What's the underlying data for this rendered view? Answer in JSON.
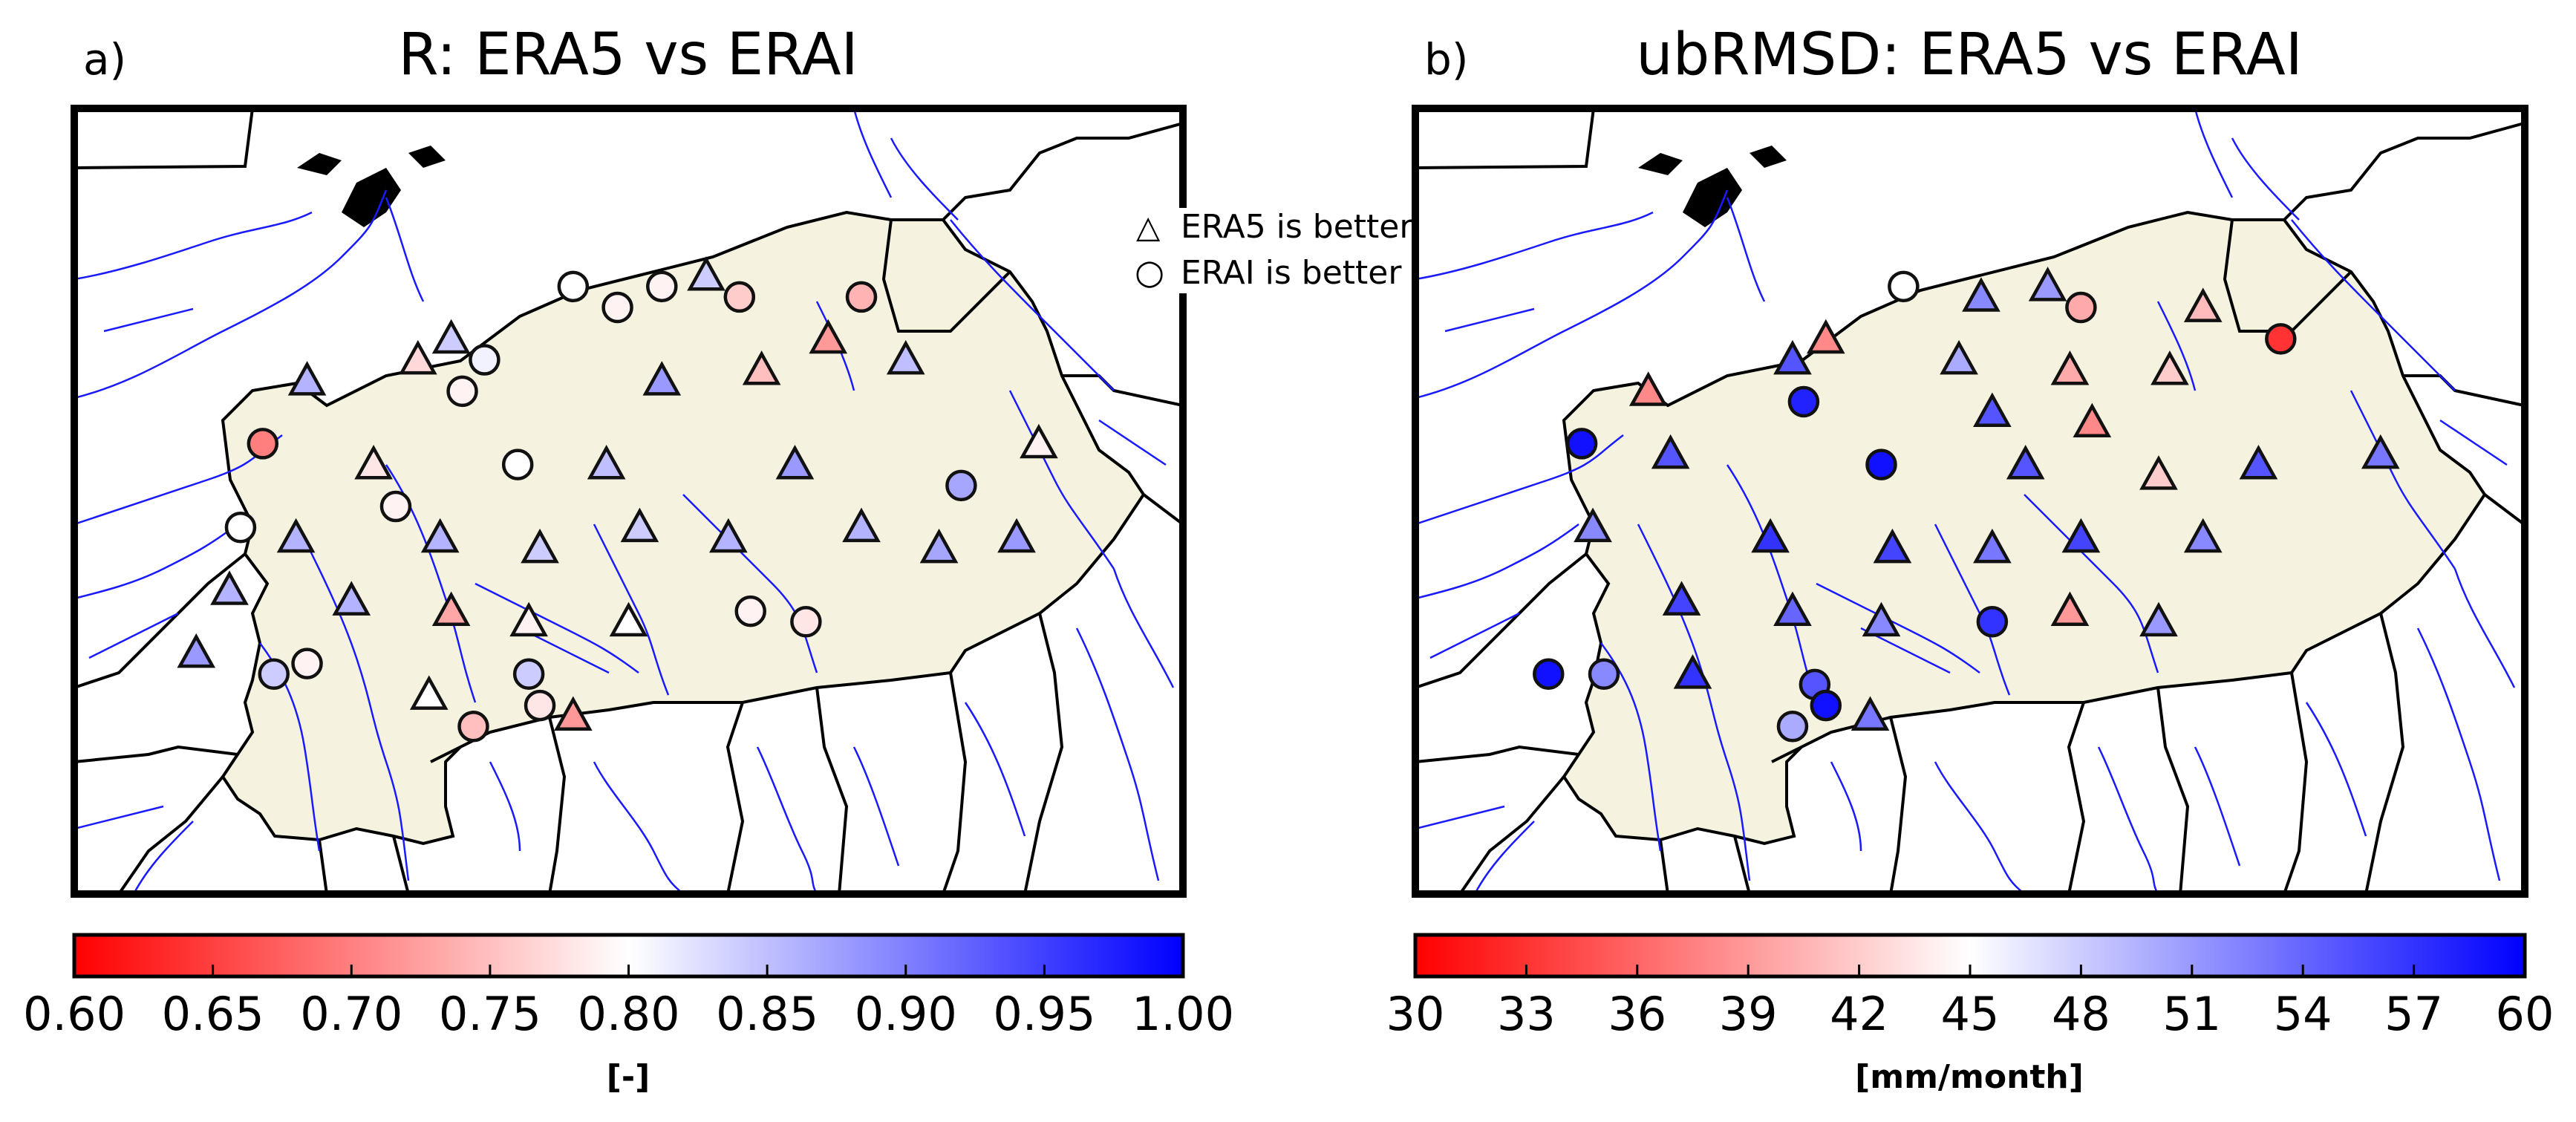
{
  "chart_data": [
    {
      "panel_label": "a)",
      "title": "R: ERA5 vs ERAI",
      "type": "scatter",
      "legend": {
        "placement": "top-right",
        "entries": [
          {
            "symbol": "△",
            "label": "ERA5 is better"
          },
          {
            "symbol": "○",
            "label": "ERAI is better"
          }
        ]
      },
      "colorbar": {
        "ticks": [
          "0.60",
          "0.65",
          "0.70",
          "0.75",
          "0.80",
          "0.85",
          "0.90",
          "0.95",
          "1.00"
        ],
        "range": [
          0.6,
          1.0
        ],
        "unit_label": "[-]",
        "colors": [
          "#ff0000",
          "#ffffff",
          "#0000ff"
        ]
      },
      "stations": [
        {
          "lon": -2.0,
          "lat": 14.3,
          "marker": "circle",
          "value": 0.8
        },
        {
          "lon": -1.6,
          "lat": 14.1,
          "marker": "circle",
          "value": 0.79
        },
        {
          "lon": -1.2,
          "lat": 14.3,
          "marker": "circle",
          "value": 0.79
        },
        {
          "lon": -0.8,
          "lat": 14.4,
          "marker": "triangle",
          "value": 0.84
        },
        {
          "lon": -0.5,
          "lat": 14.2,
          "marker": "circle",
          "value": 0.76
        },
        {
          "lon": 0.6,
          "lat": 14.2,
          "marker": "circle",
          "value": 0.74
        },
        {
          "lon": -3.1,
          "lat": 13.8,
          "marker": "triangle",
          "value": 0.84
        },
        {
          "lon": -2.8,
          "lat": 13.6,
          "marker": "circle",
          "value": 0.81
        },
        {
          "lon": -3.4,
          "lat": 13.6,
          "marker": "triangle",
          "value": 0.77
        },
        {
          "lon": 0.3,
          "lat": 13.8,
          "marker": "triangle",
          "value": 0.72
        },
        {
          "lon": 1.0,
          "lat": 13.6,
          "marker": "triangle",
          "value": 0.85
        },
        {
          "lon": -4.4,
          "lat": 13.4,
          "marker": "triangle",
          "value": 0.86
        },
        {
          "lon": -3.0,
          "lat": 13.3,
          "marker": "circle",
          "value": 0.79
        },
        {
          "lon": -1.2,
          "lat": 13.4,
          "marker": "triangle",
          "value": 0.88
        },
        {
          "lon": -0.3,
          "lat": 13.5,
          "marker": "triangle",
          "value": 0.75
        },
        {
          "lon": -4.8,
          "lat": 12.8,
          "marker": "circle",
          "value": 0.7
        },
        {
          "lon": -3.8,
          "lat": 12.6,
          "marker": "triangle",
          "value": 0.78
        },
        {
          "lon": -2.5,
          "lat": 12.6,
          "marker": "circle",
          "value": 0.8
        },
        {
          "lon": -1.7,
          "lat": 12.6,
          "marker": "triangle",
          "value": 0.85
        },
        {
          "lon": 0.0,
          "lat": 12.6,
          "marker": "triangle",
          "value": 0.88
        },
        {
          "lon": 1.5,
          "lat": 12.4,
          "marker": "circle",
          "value": 0.87
        },
        {
          "lon": 2.2,
          "lat": 12.8,
          "marker": "triangle",
          "value": 0.79
        },
        {
          "lon": -5.0,
          "lat": 12.0,
          "marker": "circle",
          "value": 0.8
        },
        {
          "lon": -4.5,
          "lat": 11.9,
          "marker": "triangle",
          "value": 0.86
        },
        {
          "lon": -3.6,
          "lat": 12.2,
          "marker": "circle",
          "value": 0.79
        },
        {
          "lon": -3.2,
          "lat": 11.9,
          "marker": "triangle",
          "value": 0.86
        },
        {
          "lon": -2.3,
          "lat": 11.8,
          "marker": "triangle",
          "value": 0.84
        },
        {
          "lon": -1.4,
          "lat": 12.0,
          "marker": "triangle",
          "value": 0.84
        },
        {
          "lon": -0.6,
          "lat": 11.9,
          "marker": "triangle",
          "value": 0.86
        },
        {
          "lon": 0.6,
          "lat": 12.0,
          "marker": "triangle",
          "value": 0.86
        },
        {
          "lon": 1.3,
          "lat": 11.8,
          "marker": "triangle",
          "value": 0.87
        },
        {
          "lon": 2.0,
          "lat": 11.9,
          "marker": "triangle",
          "value": 0.88
        },
        {
          "lon": -5.1,
          "lat": 11.4,
          "marker": "triangle",
          "value": 0.86
        },
        {
          "lon": -4.0,
          "lat": 11.3,
          "marker": "triangle",
          "value": 0.86
        },
        {
          "lon": -3.1,
          "lat": 11.2,
          "marker": "triangle",
          "value": 0.73
        },
        {
          "lon": -2.4,
          "lat": 11.1,
          "marker": "triangle",
          "value": 0.79
        },
        {
          "lon": -1.5,
          "lat": 11.1,
          "marker": "triangle",
          "value": 0.8
        },
        {
          "lon": -0.4,
          "lat": 11.2,
          "marker": "circle",
          "value": 0.79
        },
        {
          "lon": 0.1,
          "lat": 11.1,
          "marker": "circle",
          "value": 0.78
        },
        {
          "lon": -5.4,
          "lat": 10.8,
          "marker": "triangle",
          "value": 0.88
        },
        {
          "lon": -4.7,
          "lat": 10.6,
          "marker": "circle",
          "value": 0.84
        },
        {
          "lon": -4.4,
          "lat": 10.7,
          "marker": "circle",
          "value": 0.79
        },
        {
          "lon": -3.3,
          "lat": 10.4,
          "marker": "triangle",
          "value": 0.8
        },
        {
          "lon": -2.4,
          "lat": 10.6,
          "marker": "circle",
          "value": 0.84
        },
        {
          "lon": -2.3,
          "lat": 10.3,
          "marker": "circle",
          "value": 0.78
        },
        {
          "lon": -2.9,
          "lat": 10.1,
          "marker": "circle",
          "value": 0.75
        },
        {
          "lon": -2.0,
          "lat": 10.2,
          "marker": "triangle",
          "value": 0.72
        }
      ]
    },
    {
      "panel_label": "b)",
      "title": "ubRMSD: ERA5 vs ERAI",
      "type": "scatter",
      "colorbar": {
        "ticks": [
          "30",
          "33",
          "36",
          "39",
          "42",
          "45",
          "48",
          "51",
          "54",
          "57",
          "60"
        ],
        "range": [
          30,
          60
        ],
        "unit_label": "[mm/month]",
        "colors": [
          "#ff0000",
          "#ffffff",
          "#0000ff"
        ]
      },
      "stations": [
        {
          "lon": -2.1,
          "lat": 14.3,
          "marker": "circle",
          "value": 45
        },
        {
          "lon": -1.4,
          "lat": 14.2,
          "marker": "triangle",
          "value": 52
        },
        {
          "lon": -0.8,
          "lat": 14.3,
          "marker": "triangle",
          "value": 51
        },
        {
          "lon": -0.5,
          "lat": 14.1,
          "marker": "circle",
          "value": 40
        },
        {
          "lon": 0.6,
          "lat": 14.1,
          "marker": "triangle",
          "value": 41
        },
        {
          "lon": 1.3,
          "lat": 13.8,
          "marker": "circle",
          "value": 33
        },
        {
          "lon": -2.8,
          "lat": 13.8,
          "marker": "triangle",
          "value": 38
        },
        {
          "lon": -3.1,
          "lat": 13.6,
          "marker": "triangle",
          "value": 55
        },
        {
          "lon": -1.6,
          "lat": 13.6,
          "marker": "triangle",
          "value": 50
        },
        {
          "lon": -0.6,
          "lat": 13.5,
          "marker": "triangle",
          "value": 40
        },
        {
          "lon": 0.3,
          "lat": 13.5,
          "marker": "triangle",
          "value": 42
        },
        {
          "lon": -4.4,
          "lat": 13.3,
          "marker": "triangle",
          "value": 38
        },
        {
          "lon": -3.0,
          "lat": 13.2,
          "marker": "circle",
          "value": 58
        },
        {
          "lon": -1.3,
          "lat": 13.1,
          "marker": "triangle",
          "value": 55
        },
        {
          "lon": -0.4,
          "lat": 13.0,
          "marker": "triangle",
          "value": 38
        },
        {
          "lon": -5.0,
          "lat": 12.8,
          "marker": "circle",
          "value": 59
        },
        {
          "lon": -4.2,
          "lat": 12.7,
          "marker": "triangle",
          "value": 55
        },
        {
          "lon": -2.3,
          "lat": 12.6,
          "marker": "circle",
          "value": 59
        },
        {
          "lon": -1.0,
          "lat": 12.6,
          "marker": "triangle",
          "value": 55
        },
        {
          "lon": 0.2,
          "lat": 12.5,
          "marker": "triangle",
          "value": 42
        },
        {
          "lon": 1.1,
          "lat": 12.6,
          "marker": "triangle",
          "value": 55
        },
        {
          "lon": 2.2,
          "lat": 12.7,
          "marker": "triangle",
          "value": 53
        },
        {
          "lon": -4.9,
          "lat": 12.0,
          "marker": "triangle",
          "value": 52
        },
        {
          "lon": -3.3,
          "lat": 11.9,
          "marker": "triangle",
          "value": 57
        },
        {
          "lon": -2.2,
          "lat": 11.8,
          "marker": "triangle",
          "value": 56
        },
        {
          "lon": -1.3,
          "lat": 11.8,
          "marker": "triangle",
          "value": 53
        },
        {
          "lon": -0.5,
          "lat": 11.9,
          "marker": "triangle",
          "value": 56
        },
        {
          "lon": 0.6,
          "lat": 11.9,
          "marker": "triangle",
          "value": 52
        },
        {
          "lon": -4.1,
          "lat": 11.3,
          "marker": "triangle",
          "value": 56
        },
        {
          "lon": -3.1,
          "lat": 11.2,
          "marker": "triangle",
          "value": 54
        },
        {
          "lon": -2.3,
          "lat": 11.1,
          "marker": "triangle",
          "value": 52
        },
        {
          "lon": -1.3,
          "lat": 11.1,
          "marker": "circle",
          "value": 57
        },
        {
          "lon": -0.6,
          "lat": 11.2,
          "marker": "triangle",
          "value": 39
        },
        {
          "lon": 0.2,
          "lat": 11.1,
          "marker": "triangle",
          "value": 51
        },
        {
          "lon": -5.3,
          "lat": 10.6,
          "marker": "circle",
          "value": 59
        },
        {
          "lon": -4.8,
          "lat": 10.6,
          "marker": "circle",
          "value": 52
        },
        {
          "lon": -4.0,
          "lat": 10.6,
          "marker": "triangle",
          "value": 57
        },
        {
          "lon": -2.9,
          "lat": 10.5,
          "marker": "circle",
          "value": 55
        },
        {
          "lon": -2.8,
          "lat": 10.3,
          "marker": "circle",
          "value": 59
        },
        {
          "lon": -3.1,
          "lat": 10.1,
          "marker": "circle",
          "value": 50
        },
        {
          "lon": -2.4,
          "lat": 10.2,
          "marker": "triangle",
          "value": 53
        }
      ]
    }
  ]
}
